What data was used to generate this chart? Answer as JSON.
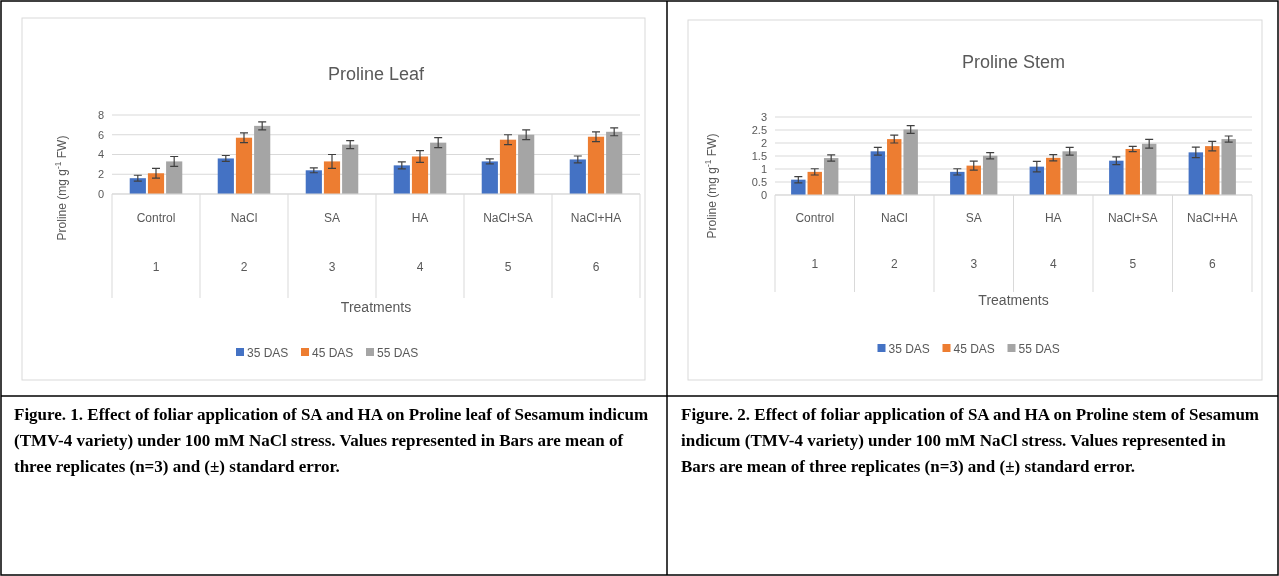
{
  "chart_data": [
    {
      "type": "bar",
      "title": "Proline Leaf",
      "xlabel": "Treatments",
      "ylabel": "Proline (mg g$^{-1}$ FW)",
      "categories": [
        "Control",
        "NaCl",
        "SA",
        "HA",
        "NaCl+SA",
        "NaCl+HA"
      ],
      "series": [
        {
          "name": "35 DAS",
          "color": "#4472c4",
          "values": [
            1.6,
            3.6,
            2.4,
            2.9,
            3.3,
            3.5
          ],
          "errors": [
            0.3,
            0.3,
            0.25,
            0.35,
            0.25,
            0.35
          ]
        },
        {
          "name": "45 DAS",
          "color": "#ed7d31",
          "values": [
            2.1,
            5.7,
            3.3,
            3.8,
            5.5,
            5.8
          ],
          "errors": [
            0.5,
            0.5,
            0.7,
            0.6,
            0.5,
            0.5
          ]
        },
        {
          "name": "55 DAS",
          "color": "#a5a5a5",
          "values": [
            3.3,
            6.9,
            5.0,
            5.2,
            6.0,
            6.3
          ],
          "errors": [
            0.5,
            0.4,
            0.4,
            0.5,
            0.5,
            0.4
          ]
        }
      ],
      "ylim": [
        0,
        8
      ],
      "yticks": [
        0,
        2,
        4,
        6,
        8
      ],
      "grid": "y",
      "legend": "bottom",
      "annotations": [
        "1",
        "2",
        "3",
        "4",
        "5",
        "6",
        "Figure. 1. Effect of foliar application of SA and HA on Proline leaf of Sesamum indicum (TMV-4 variety) under 100 mM NaCl stress. Values represented in Bars are mean of three replicates (n=3) and (±) standard error."
      ]
    },
    {
      "type": "bar",
      "title": "Proline Stem",
      "xlabel": "Treatments",
      "ylabel": "Proline (mg g$^{-1}$ FW)",
      "categories": [
        "Control",
        "NaCl",
        "SA",
        "HA",
        "NaCl+SA",
        "NaCl+HA"
      ],
      "series": [
        {
          "name": "35 DAS",
          "color": "#4472c4",
          "values": [
            0.59,
            1.68,
            0.89,
            1.09,
            1.32,
            1.64
          ],
          "errors": [
            0.12,
            0.15,
            0.12,
            0.2,
            0.15,
            0.2
          ]
        },
        {
          "name": "45 DAS",
          "color": "#ed7d31",
          "values": [
            0.89,
            2.15,
            1.13,
            1.43,
            1.77,
            1.88
          ],
          "errors": [
            0.12,
            0.15,
            0.17,
            0.12,
            0.1,
            0.18
          ]
        },
        {
          "name": "55 DAS",
          "color": "#a5a5a5",
          "values": [
            1.42,
            2.52,
            1.51,
            1.68,
            1.97,
            2.15
          ],
          "errors": [
            0.12,
            0.15,
            0.12,
            0.15,
            0.17,
            0.12
          ]
        }
      ],
      "ylim": [
        0,
        3
      ],
      "yticks": [
        0,
        0.5,
        1,
        1.5,
        2,
        2.5,
        3
      ],
      "grid": "y",
      "legend": "bottom",
      "annotations": [
        "1",
        "2",
        "3",
        "4",
        "5",
        "6",
        "Figure. 2. Effect of foliar application of SA and HA on Proline stem of Sesamum indicum (TMV-4 variety) under 100 mM NaCl stress. Values represented in Bars are mean of three replicates (n=3) and (±) standard error."
      ]
    }
  ]
}
